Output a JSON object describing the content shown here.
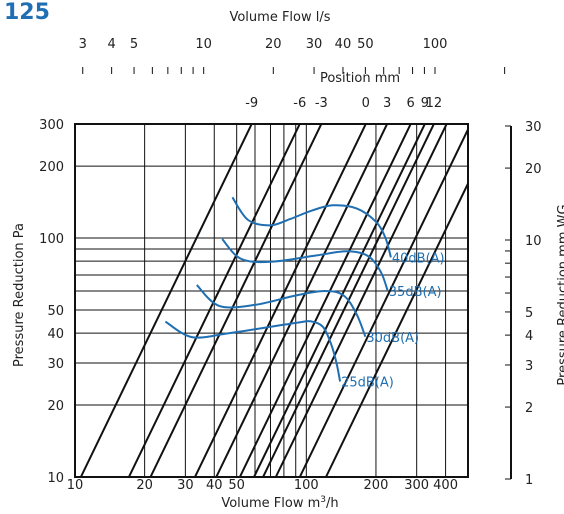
{
  "page_title": "125",
  "colors": {
    "curve": "#1f6fb2",
    "title": "#1f6fb2",
    "lines": "#111111",
    "text": "#222222"
  },
  "chart_data": {
    "type": "line",
    "title": "125",
    "xlabel": "Volume Flow m³/h",
    "ylabel": "Pressure Reduction Pa",
    "x_scale": "log",
    "y_scale": "log",
    "xlim": [
      10,
      500
    ],
    "ylim": [
      10,
      300
    ],
    "x_ticks": [
      {
        "v": 10,
        "label": "10"
      },
      {
        "v": 20,
        "label": "20"
      },
      {
        "v": 30,
        "label": "30"
      },
      {
        "v": 40,
        "label": "40"
      },
      {
        "v": 50,
        "label": "50"
      },
      {
        "v": 100,
        "label": "100"
      },
      {
        "v": 200,
        "label": "200"
      },
      {
        "v": 300,
        "label": "300"
      },
      {
        "v": 400,
        "label": "400"
      }
    ],
    "y_ticks": [
      {
        "v": 10,
        "label": "10"
      },
      {
        "v": 20,
        "label": "20"
      },
      {
        "v": 30,
        "label": "30"
      },
      {
        "v": 40,
        "label": "40"
      },
      {
        "v": 50,
        "label": "50"
      },
      {
        "v": 100,
        "label": "100"
      },
      {
        "v": 200,
        "label": "200"
      },
      {
        "v": 300,
        "label": "300"
      }
    ],
    "x_grid": [
      20,
      30,
      40,
      50,
      60,
      70,
      80,
      90,
      100,
      200,
      300,
      400
    ],
    "y_grid": [
      20,
      30,
      40,
      50,
      60,
      70,
      80,
      90,
      100,
      200
    ],
    "top_axis": {
      "label": "Volume Flow l/s",
      "ticks": [
        {
          "v": 3,
          "label": "3"
        },
        {
          "v": 4,
          "label": "4"
        },
        {
          "v": 5,
          "label": "5"
        },
        {
          "v": 10,
          "label": "10"
        },
        {
          "v": 20,
          "label": "20"
        },
        {
          "v": 30,
          "label": "30"
        },
        {
          "v": 40,
          "label": "40"
        },
        {
          "v": 50,
          "label": "50"
        },
        {
          "v": 100,
          "label": "100"
        }
      ],
      "minor": [
        3,
        4,
        5,
        6,
        7,
        8,
        9,
        10,
        20,
        30,
        40,
        50,
        60,
        70,
        80,
        90,
        100,
        200
      ]
    },
    "right_axis": {
      "label": "Pressure Reduction mm WG",
      "ticks": [
        {
          "v": 1,
          "label": "1"
        },
        {
          "v": 2,
          "label": "2"
        },
        {
          "v": 3,
          "label": "3"
        },
        {
          "v": 4,
          "label": "4"
        },
        {
          "v": 5,
          "label": "5"
        },
        {
          "v": 10,
          "label": "10"
        },
        {
          "v": 20,
          "label": "20"
        },
        {
          "v": 30,
          "label": "30"
        }
      ],
      "minor": [
        1,
        2,
        3,
        4,
        5,
        6,
        7,
        8,
        9,
        10,
        20,
        30
      ]
    },
    "positions": {
      "label": "Position mm",
      "lines": [
        {
          "label": "-9",
          "x_at_ymin": 10.6
        },
        {
          "label": "-6",
          "x_at_ymin": 17.1
        },
        {
          "label": "-3",
          "x_at_ymin": 21.2
        },
        {
          "label": "0",
          "x_at_ymin": 33.0
        },
        {
          "label": "3",
          "x_at_ymin": 40.8
        },
        {
          "label": "6",
          "x_at_ymin": 51.6
        },
        {
          "label": "9",
          "x_at_ymin": 59.4
        },
        {
          "label": "12",
          "x_at_ymin": 65.0
        },
        {
          "label": "",
          "x_at_ymin": 73.8
        },
        {
          "label": "",
          "x_at_ymin": 93.7
        },
        {
          "label": "",
          "x_at_ymin": 121.6
        }
      ]
    },
    "series": [
      {
        "name": "25dB(A)",
        "points": [
          [
            24.6,
            44.7
          ],
          [
            32,
            38.5
          ],
          [
            45,
            39.8
          ],
          [
            70,
            42.5
          ],
          [
            95,
            44.5
          ],
          [
            105,
            44.8
          ],
          [
            118,
            42.5
          ],
          [
            128,
            36
          ],
          [
            135,
            30
          ],
          [
            140,
            25.1
          ]
        ]
      },
      {
        "name": "30dB(A)",
        "points": [
          [
            33.6,
            63.6
          ],
          [
            42,
            52
          ],
          [
            60,
            52.5
          ],
          [
            90,
            57.5
          ],
          [
            120,
            60
          ],
          [
            145,
            57.5
          ],
          [
            165,
            48
          ],
          [
            180,
            38.6
          ]
        ]
      },
      {
        "name": "35dB(A)",
        "points": [
          [
            43.3,
            99
          ],
          [
            52,
            82
          ],
          [
            70,
            79.5
          ],
          [
            110,
            84.5
          ],
          [
            150,
            88
          ],
          [
            185,
            84
          ],
          [
            210,
            72
          ],
          [
            225,
            60
          ]
        ]
      },
      {
        "name": "40dB(A)",
        "points": [
          [
            47.9,
            148
          ],
          [
            56,
            119
          ],
          [
            70,
            113
          ],
          [
            85,
            120
          ],
          [
            105,
            130
          ],
          [
            130,
            137
          ],
          [
            165,
            133
          ],
          [
            200,
            117
          ],
          [
            220,
            100
          ],
          [
            232,
            83
          ]
        ]
      }
    ]
  }
}
